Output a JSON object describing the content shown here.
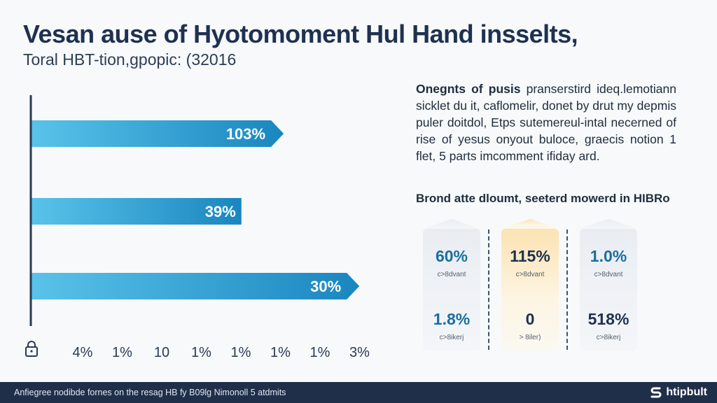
{
  "title": "Vesan ause of Hyotomoment Hul Hand insselts,",
  "subtitle": "Toral HBT-tion,gpopic: (32016",
  "description": {
    "lead": "Onegnts of pusis",
    "text": "pranserstird ideq.lemotiann sicklet du it, caflomelir, donet by drut my depmis puler doitdol, Etps sutemereul-intal necerned of rise of yesus onyout buloce, graecis notion 1 flet, 5 parts imcomment ifiday ard."
  },
  "section_heading": "Brond atte dloumt, seeterd mowerd in HIBRo",
  "cards": [
    {
      "top_value": "60%",
      "top_caption": "c>8dvant",
      "bottom_value": "1.8%",
      "bottom_caption": "c>8ikerj"
    },
    {
      "top_value": "115%",
      "top_caption": "c>8dvant",
      "bottom_value": "0",
      "bottom_caption": "> 8iler)"
    },
    {
      "top_value": "1.0%",
      "top_caption": "c>8dvant",
      "bottom_value": "518%",
      "bottom_caption": "c>8ikerj"
    }
  ],
  "footer": {
    "text": "Anfiegree nodibde fornes on the resag HB fy B09lg Nimonoll 5 atdmits",
    "brand": "htipbult"
  },
  "colors": {
    "bar_light": "#59c3ea",
    "bar_dark": "#1a86bf",
    "axis": "#2a3a52",
    "footer_bg": "#1f2f4a"
  },
  "chart_data": {
    "type": "bar",
    "orientation": "horizontal",
    "categories": [
      "",
      "",
      ""
    ],
    "values": [
      103,
      39,
      30
    ],
    "bar_labels": [
      "103%",
      "39%",
      "30%"
    ],
    "bar_extents": [
      73,
      64,
      96
    ],
    "xtick_labels": [
      "4%",
      "1%",
      "10",
      "1%",
      "1%",
      "1%",
      "1%",
      "3%"
    ],
    "lock_icon": "lock-icon",
    "grid": false,
    "legend": "none",
    "xlabel": "",
    "ylabel": ""
  }
}
